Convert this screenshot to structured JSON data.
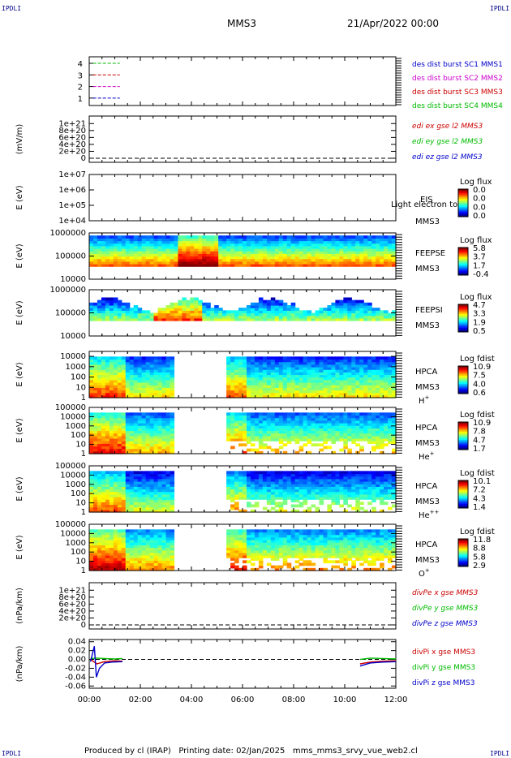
{
  "header": {
    "corner": "IPDLI",
    "spacecraft": "MMS3",
    "date": "21/Apr/2022 00:00"
  },
  "footer": {
    "text": "Produced by cl (IRAP)   Printing date: 02/Jan/2025   mms_mms3_srvy_vue_web2.cl"
  },
  "colors": {
    "blue": "#0000cc",
    "red": "#cc0000",
    "green": "#00bb00",
    "magenta": "#cc00cc",
    "black": "#000000"
  },
  "chart_data": [
    {
      "type": "line",
      "panel": "spacecraft-lines",
      "yticks": [
        "1",
        "2",
        "3",
        "4"
      ],
      "ylim": [
        0.5,
        4.5
      ],
      "legend_placement": "right",
      "series": [
        {
          "name": "des dist burst SC1 MMS1",
          "color": "#0000cc",
          "y": 1,
          "x_hours": [
            0.15,
            1.2
          ]
        },
        {
          "name": "des dist burst SC2 MMS2",
          "color": "#cc00cc",
          "y": 2,
          "x_hours": [
            0.15,
            1.2
          ]
        },
        {
          "name": "des dist burst SC3 MMS3",
          "color": "#cc0000",
          "y": 3,
          "x_hours": [
            0.15,
            1.2
          ]
        },
        {
          "name": "des dist burst SC4 MMS4",
          "color": "#00bb00",
          "y": 4,
          "x_hours": [
            0.15,
            1.2
          ]
        }
      ]
    },
    {
      "type": "line",
      "panel": "edi",
      "ylabel": "(mV/m)",
      "yticks": [
        "0",
        "2e+20",
        "4e+20",
        "6e+20",
        "8e+20",
        "1e+21"
      ],
      "ylim": [
        0,
        1.1e+21
      ],
      "zero_line": true,
      "series": [
        {
          "name": "edi ex gse l2 MMS3",
          "color": "#cc0000"
        },
        {
          "name": "edi ey gse l2 MMS3",
          "color": "#00bb00"
        },
        {
          "name": "edi ez gse l2 MMS3",
          "color": "#0000cc"
        }
      ]
    },
    {
      "type": "heatmap",
      "panel": "eis",
      "ylabel": "E (eV)",
      "yscale": "log",
      "yticks": [
        "1e+04",
        "1e+05",
        "1e+06",
        "1e+07"
      ],
      "ylim": [
        10000.0,
        10000000.0
      ],
      "instrument": "EIS",
      "spacecraft": "MMS3",
      "note": "Light electron to",
      "colorbar": {
        "title": "Log flux",
        "ticks": [
          "0.0",
          "0.0",
          "0.0",
          "0.0"
        ]
      }
    },
    {
      "type": "heatmap",
      "panel": "feepse",
      "ylabel": "E (eV)",
      "yscale": "log",
      "yticks": [
        "10000",
        "100000",
        "1000000"
      ],
      "ylim": [
        10000.0,
        1000000.0
      ],
      "instrument": "FEEPSE",
      "spacecraft": "MMS3",
      "colorbar": {
        "title": "Log flux",
        "ticks": [
          "5.8",
          "3.7",
          "1.7",
          "-0.4"
        ]
      },
      "data_hours": [
        0,
        12
      ]
    },
    {
      "type": "heatmap",
      "panel": "feepsi",
      "ylabel": "E (eV)",
      "yscale": "log",
      "yticks": [
        "10000",
        "100000",
        "1000000"
      ],
      "ylim": [
        10000.0,
        1000000.0
      ],
      "instrument": "FEEPSI",
      "spacecraft": "MMS3",
      "colorbar": {
        "title": "Log flux",
        "ticks": [
          "4.7",
          "3.3",
          "1.9",
          "0.5"
        ]
      },
      "data_hours": [
        0,
        12
      ]
    },
    {
      "type": "heatmap",
      "panel": "hpca-h",
      "ylabel": "E (eV)",
      "yscale": "log",
      "yticks": [
        "1",
        "10",
        "100",
        "1000",
        "10000"
      ],
      "ylim": [
        1,
        30000
      ],
      "instrument": "HPCA",
      "spacecraft": "MMS3",
      "species": "H",
      "charge": "+",
      "colorbar": {
        "title": "Log fdist",
        "ticks": [
          "10.9",
          "7.5",
          "4.0",
          "0.6"
        ]
      },
      "gap_hours": [
        3.3,
        5.3
      ]
    },
    {
      "type": "heatmap",
      "panel": "hpca-he",
      "ylabel": "E (eV)",
      "yscale": "log",
      "yticks": [
        "1",
        "10",
        "100",
        "1000",
        "10000",
        "100000"
      ],
      "ylim": [
        1,
        100000
      ],
      "instrument": "HPCA",
      "spacecraft": "MMS3",
      "species": "He",
      "charge": "+",
      "colorbar": {
        "title": "Log fdist",
        "ticks": [
          "10.9",
          "7.8",
          "4.7",
          "1.7"
        ]
      },
      "gap_hours": [
        3.3,
        5.3
      ]
    },
    {
      "type": "heatmap",
      "panel": "hpca-hepp",
      "ylabel": "E (eV)",
      "yscale": "log",
      "yticks": [
        "1",
        "10",
        "100",
        "1000",
        "10000",
        "100000"
      ],
      "ylim": [
        1,
        100000
      ],
      "instrument": "HPCA",
      "spacecraft": "MMS3",
      "species": "He",
      "charge": "++",
      "colorbar": {
        "title": "Log fdist",
        "ticks": [
          "10.1",
          "7.2",
          "4.3",
          "1.4"
        ]
      },
      "gap_hours": [
        3.3,
        5.3
      ]
    },
    {
      "type": "heatmap",
      "panel": "hpca-o",
      "ylabel": "E (eV)",
      "yscale": "log",
      "yticks": [
        "1",
        "10",
        "100",
        "1000",
        "10000",
        "100000"
      ],
      "ylim": [
        1,
        100000
      ],
      "instrument": "HPCA",
      "spacecraft": "MMS3",
      "species": "O",
      "charge": "+",
      "colorbar": {
        "title": "Log fdist",
        "ticks": [
          "11.8",
          "8.8",
          "5.8",
          "2.9"
        ]
      },
      "gap_hours": [
        3.3,
        5.3
      ]
    },
    {
      "type": "line",
      "panel": "divpe",
      "ylabel": "(nPa/km)",
      "yticks": [
        "0",
        "2e+20",
        "4e+20",
        "6e+20",
        "8e+20",
        "1e+21"
      ],
      "ylim": [
        0,
        1.1e+21
      ],
      "zero_line": true,
      "series": [
        {
          "name": "divPe x gse MMS3",
          "color": "#cc0000"
        },
        {
          "name": "divPe y gse MMS3",
          "color": "#00bb00"
        },
        {
          "name": "divPe z gse MMS3",
          "color": "#0000cc"
        }
      ]
    },
    {
      "type": "line",
      "panel": "divpi",
      "ylabel": "(nPa/km)",
      "yticks": [
        "-0.06",
        "-0.04",
        "-0.02",
        "0.00",
        "0.02",
        "0.04"
      ],
      "ylim": [
        -0.065,
        0.045
      ],
      "zero_line": true,
      "xticks": [
        "00:00",
        "02:00",
        "04:00",
        "06:00",
        "08:00",
        "10:00",
        "12:00"
      ],
      "xlim_hours": [
        0,
        12
      ],
      "series": [
        {
          "name": "divPi x gse MMS3",
          "color": "#cc0000",
          "segments": [
            [
              [
                0.05,
                0.0
              ],
              [
                0.3,
                -0.01
              ],
              [
                0.6,
                -0.005
              ],
              [
                1.0,
                -0.003
              ],
              [
                1.3,
                -0.004
              ]
            ],
            [
              [
                10.6,
                -0.01
              ],
              [
                11.0,
                -0.006
              ],
              [
                11.5,
                -0.004
              ],
              [
                12,
                -0.003
              ]
            ]
          ]
        },
        {
          "name": "divPi y gse MMS3",
          "color": "#00bb00",
          "segments": [
            [
              [
                0.05,
                0.002
              ],
              [
                0.3,
                0.003
              ],
              [
                0.6,
                0.002
              ],
              [
                1.0,
                0.001
              ],
              [
                1.3,
                0.002
              ]
            ],
            [
              [
                10.6,
                0.0
              ],
              [
                11.0,
                0.003
              ],
              [
                11.5,
                0.002
              ],
              [
                12,
                0.001
              ]
            ]
          ]
        },
        {
          "name": "divPi z gse MMS3",
          "color": "#0000cc",
          "segments": [
            [
              [
                0.05,
                -0.005
              ],
              [
                0.2,
                0.03
              ],
              [
                0.28,
                -0.04
              ],
              [
                0.4,
                -0.02
              ],
              [
                0.6,
                -0.008
              ],
              [
                0.9,
                -0.006
              ],
              [
                1.3,
                -0.005
              ]
            ],
            [
              [
                10.6,
                -0.015
              ],
              [
                11.0,
                -0.008
              ],
              [
                11.5,
                -0.006
              ],
              [
                12,
                -0.005
              ]
            ]
          ]
        }
      ]
    }
  ]
}
